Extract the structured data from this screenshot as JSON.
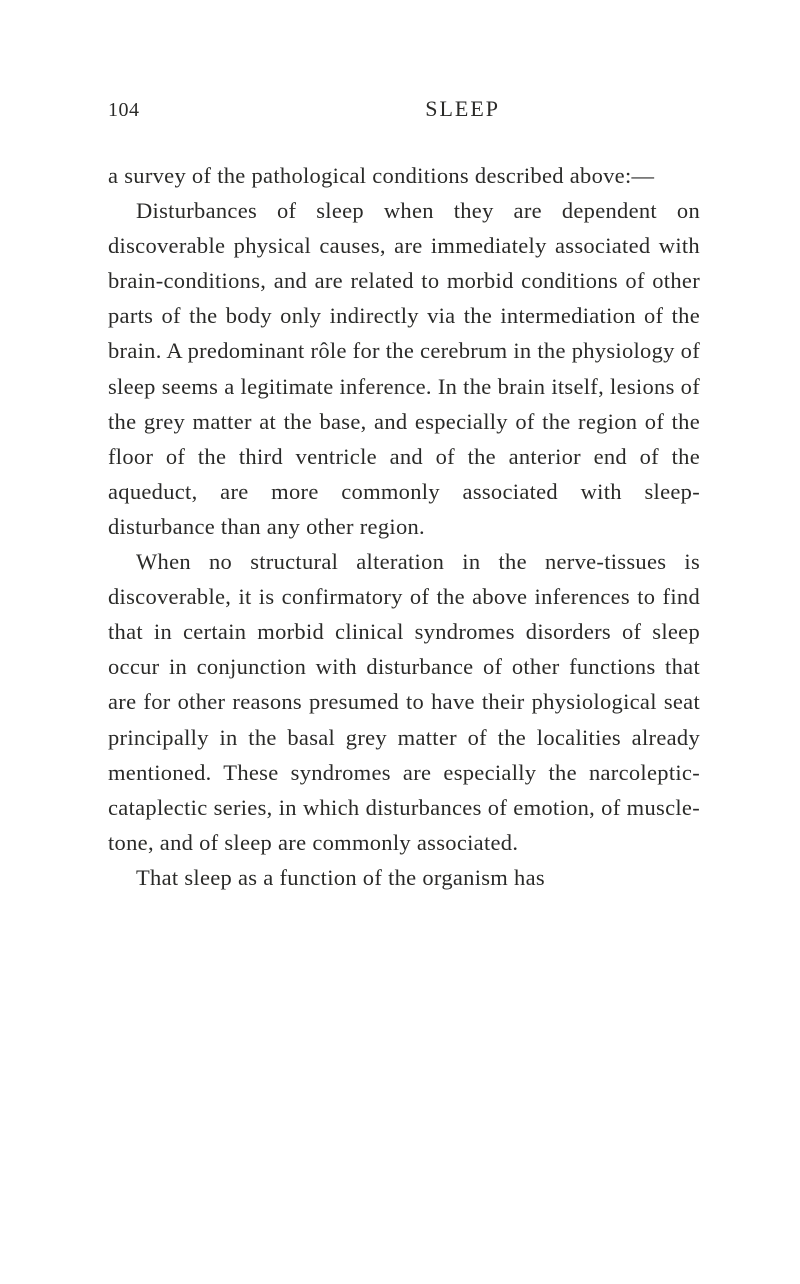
{
  "header": {
    "page_number": "104",
    "chapter_title": "SLEEP"
  },
  "paragraphs": {
    "p1": "a survey of the pathological conditions described above:—",
    "p2": "Disturbances of sleep when they are dependent on discoverable physical causes, are immediately associated with brain-conditions, and are related to morbid conditions of other parts of the body only indirectly via the intermediation of the brain. A predominant rôle for the cerebrum in the physiology of sleep seems a legitimate inference. In the brain itself, lesions of the grey matter at the base, and especially of the region of the floor of the third ventricle and of the anterior end of the aqueduct, are more commonly associated with sleep-disturbance than any other region.",
    "p3": "When no structural alteration in the nerve-tissues is discoverable, it is confirmatory of the above inferences to find that in certain morbid clinical syndromes disorders of sleep occur in conjunction with disturbance of other functions that are for other reasons presumed to have their physiological seat principally in the basal grey matter of the localities already mentioned. These syndromes are especially the narcoleptic-cataplectic series, in which disturbances of emotion, of muscle-tone, and of sleep are com­monly associated.",
    "p4": "That sleep as a function of the organism has"
  },
  "styling": {
    "background_color": "#ffffff",
    "text_color": "#2a2a28",
    "font_family": "Georgia, Times New Roman, serif",
    "body_font_size": 22.5,
    "header_font_size": 22,
    "page_number_font_size": 20,
    "line_height": 1.56,
    "indent_size": 28
  }
}
